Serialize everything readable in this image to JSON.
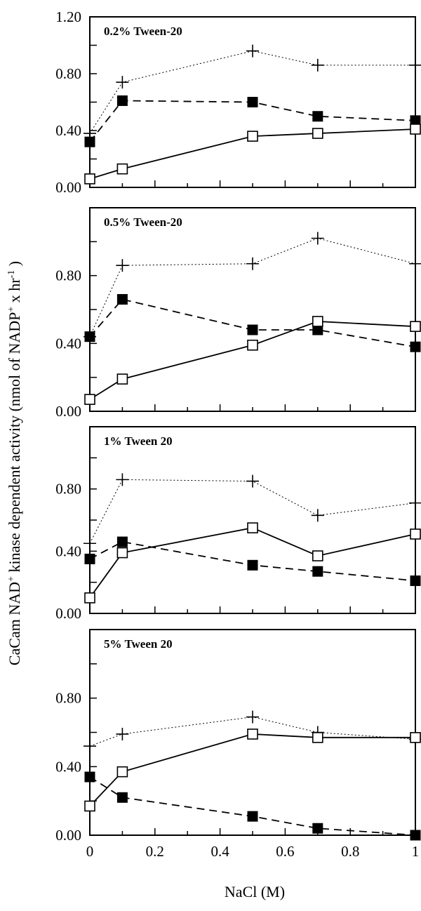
{
  "figure": {
    "ylabel_main": "CaCam NAD",
    "ylabel_main_sup": "+",
    "ylabel_rest": " kinase  dependent activity  (nmol of NADP",
    "ylabel_sup2": "+",
    "ylabel_tail": " x hr",
    "ylabel_sup3": "-1",
    "ylabel_close": " )",
    "xlabel": "NaCl (M)"
  },
  "chart_data": [
    {
      "type": "line",
      "title": "0.2% Tween-20",
      "x": [
        0,
        0.1,
        0.5,
        0.7,
        1
      ],
      "ylim": [
        0,
        1.2
      ],
      "xlim": [
        0,
        1
      ],
      "yticks": [
        "0.00",
        "0.40",
        "0.80",
        "1.20"
      ],
      "series": [
        {
          "marker": "plus",
          "line": "dotted",
          "values": [
            0.38,
            0.74,
            0.96,
            0.86,
            0.86
          ]
        },
        {
          "marker": "filled-square",
          "line": "dashed",
          "values": [
            0.32,
            0.61,
            0.6,
            0.5,
            0.47
          ]
        },
        {
          "marker": "open-square",
          "line": "solid",
          "values": [
            0.06,
            0.13,
            0.36,
            0.38,
            0.41
          ]
        }
      ]
    },
    {
      "type": "line",
      "title": "0.5% Tween-20",
      "x": [
        0,
        0.1,
        0.5,
        0.7,
        1
      ],
      "ylim": [
        0,
        1.2
      ],
      "xlim": [
        0,
        1
      ],
      "yticks": [
        "0.00",
        "0.40",
        "0.80"
      ],
      "series": [
        {
          "marker": "plus",
          "line": "dotted",
          "values": [
            0.44,
            0.86,
            0.87,
            1.02,
            0.87
          ]
        },
        {
          "marker": "filled-square",
          "line": "dashed",
          "values": [
            0.44,
            0.66,
            0.48,
            0.48,
            0.38
          ]
        },
        {
          "marker": "open-square",
          "line": "solid",
          "values": [
            0.07,
            0.19,
            0.39,
            0.53,
            0.5
          ]
        }
      ]
    },
    {
      "type": "line",
      "title": "1% Tween 20",
      "x": [
        0,
        0.1,
        0.5,
        0.7,
        1
      ],
      "ylim": [
        0,
        1.2
      ],
      "xlim": [
        0,
        1
      ],
      "yticks": [
        "0.00",
        "0.40",
        "0.80"
      ],
      "series": [
        {
          "marker": "plus",
          "line": "dotted",
          "values": [
            0.45,
            0.86,
            0.85,
            0.63,
            0.71
          ]
        },
        {
          "marker": "filled-square",
          "line": "dashed",
          "values": [
            0.35,
            0.46,
            0.31,
            0.27,
            0.21
          ]
        },
        {
          "marker": "open-square",
          "line": "solid",
          "values": [
            0.1,
            0.39,
            0.55,
            0.37,
            0.51
          ]
        }
      ]
    },
    {
      "type": "line",
      "title": "5% Tween 20",
      "x": [
        0,
        0.1,
        0.5,
        0.7,
        1
      ],
      "ylim": [
        0,
        1.2
      ],
      "xlim": [
        0,
        1
      ],
      "yticks": [
        "0.00",
        "0.40",
        "0.80"
      ],
      "xticks": [
        "0",
        "0.2",
        "0.4",
        "0.6",
        "0.8",
        "1"
      ],
      "series": [
        {
          "marker": "plus",
          "line": "dotted",
          "values": [
            0.52,
            0.59,
            0.69,
            0.6,
            0.56
          ]
        },
        {
          "marker": "filled-square",
          "line": "dashed",
          "values": [
            0.34,
            0.22,
            0.11,
            0.04,
            0.0
          ]
        },
        {
          "marker": "open-square",
          "line": "solid",
          "values": [
            0.17,
            0.37,
            0.59,
            0.57,
            0.57
          ]
        }
      ]
    }
  ]
}
